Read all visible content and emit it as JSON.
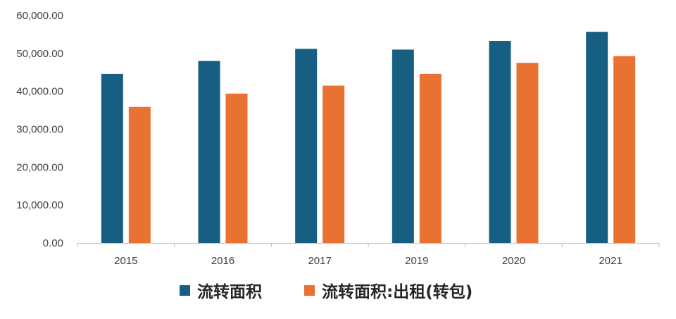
{
  "chart_data": {
    "type": "bar",
    "categories": [
      "2015",
      "2016",
      "2017",
      "2019",
      "2020",
      "2021"
    ],
    "series": [
      {
        "name": "流转面积",
        "color": "#175F82",
        "values": [
          44600,
          48000,
          51200,
          51000,
          53300,
          55700
        ]
      },
      {
        "name": "流转面积:出租(转包)",
        "color": "#E97132",
        "values": [
          35900,
          39400,
          41500,
          44600,
          47500,
          49300
        ]
      }
    ],
    "ylim": [
      0,
      60000
    ],
    "yticks": [
      "0.00",
      "10,000.00",
      "20,000.00",
      "30,000.00",
      "40,000.00",
      "50,000.00",
      "60,000.00"
    ],
    "grid": false,
    "legend_position": "bottom",
    "axis_color": "#BFBFBF"
  }
}
